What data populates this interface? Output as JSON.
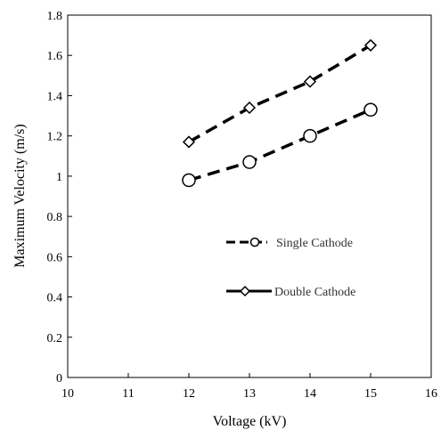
{
  "chart_data": {
    "type": "line",
    "xlabel": "Voltage (kV)",
    "ylabel": "Maximum Velocity (m/s)",
    "xlim": [
      10,
      16
    ],
    "ylim": [
      0,
      1.8
    ],
    "x_ticks": [
      "10",
      "11",
      "12",
      "13",
      "14",
      "15",
      "16"
    ],
    "y_ticks": [
      "0",
      "0.2",
      "0.4",
      "0.6",
      "0.8",
      "1",
      "1.2",
      "1.4",
      "1.6",
      "1.8"
    ],
    "grid": false,
    "legend_placement": "center-right",
    "series": [
      {
        "name": "Single Cathode",
        "marker": "circle",
        "line_style": "dashed",
        "x": [
          12,
          13,
          14,
          15
        ],
        "values": [
          0.98,
          1.07,
          1.2,
          1.33
        ]
      },
      {
        "name": "Double Cathode",
        "marker": "diamond",
        "line_style": "dashed",
        "x": [
          12,
          13,
          14,
          15
        ],
        "values": [
          1.17,
          1.34,
          1.47,
          1.65
        ]
      }
    ],
    "colors": {
      "line": "#000000",
      "marker_fill": "#ffffff",
      "legend_text": "#333333"
    }
  }
}
